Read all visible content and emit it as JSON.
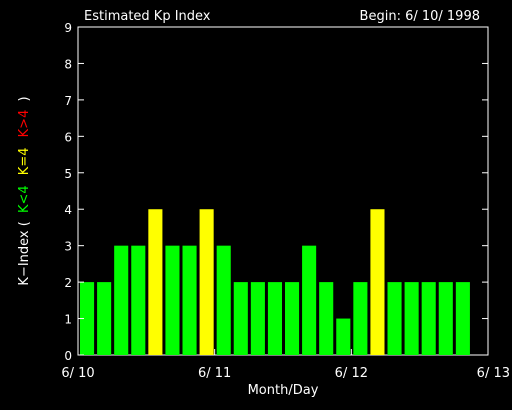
{
  "chart_data": {
    "type": "bar",
    "title": "Estimated Kp Index",
    "subtitle": "Begin: 6/ 10/ 1998",
    "xlabel": "Month/Day",
    "ylabel": {
      "prefix": "K−Index (",
      "low": "K<4",
      "mid": "K=4",
      "high": "K>4",
      "suffix": ")"
    },
    "ylim": [
      0,
      9
    ],
    "yticks": [
      "0",
      "1",
      "2",
      "3",
      "4",
      "5",
      "6",
      "7",
      "8",
      "9"
    ],
    "x_tick_labels": [
      "6/ 10",
      "6/ 11",
      "6/ 12",
      "6/ 13"
    ],
    "interval_hours": 3,
    "values": [
      2,
      2,
      3,
      3,
      4,
      3,
      3,
      4,
      3,
      2,
      2,
      2,
      2,
      3,
      2,
      1,
      2,
      4,
      2,
      2,
      2,
      2,
      2
    ],
    "colors": {
      "low": "#00ff00",
      "equal": "#ffff00",
      "high": "#ff0000"
    },
    "grid": false
  }
}
